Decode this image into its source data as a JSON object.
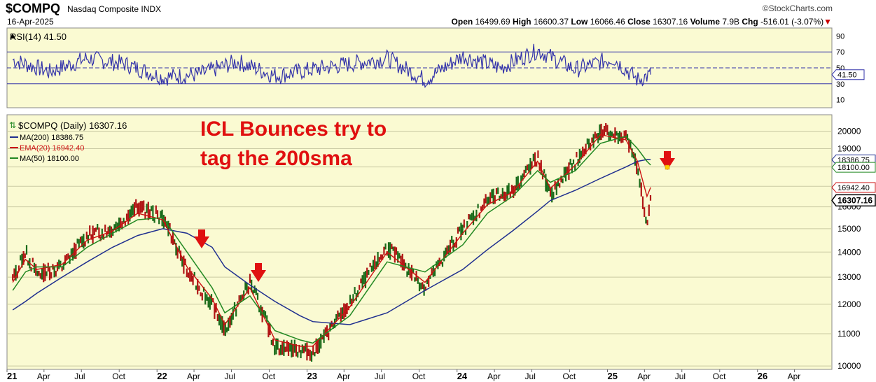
{
  "header": {
    "symbol": "$COMPQ",
    "name": "Nasdaq Composite INDX",
    "date": "16-Apr-2025",
    "credit": "©StockCharts.com",
    "open_label": "Open",
    "open": "16499.69",
    "high_label": "High",
    "high": "16600.37",
    "low_label": "Low",
    "low": "16066.46",
    "close_label": "Close",
    "close": "16307.16",
    "volume_label": "Volume",
    "volume": "7.9B",
    "chg_label": "Chg",
    "chg": "-516.01 (-3.07%)"
  },
  "colors": {
    "background": "#fafad2",
    "rsi": "#3333aa",
    "ma200": "#1f2f8f",
    "ema20": "#cc1111",
    "ma50": "#228822",
    "annotation": "#e01010"
  },
  "rsi_panel": {
    "label": "RSI(14) 41.50",
    "current_badge": "41.50",
    "ticks": [
      "90",
      "70",
      "50",
      "30",
      "10"
    ]
  },
  "price_panel": {
    "legend": {
      "main": "$COMPQ (Daily) 16307.16",
      "ma200": "MA(200) 18386.75",
      "ema20": "EMA(20) 16942.40",
      "ma50": "MA(50) 18100.00"
    },
    "annotation_line1": "ICL Bounces try to",
    "annotation_line2": "tag the 200sma",
    "price_ticks": [
      "20000",
      "19000",
      "18000",
      "17000",
      "16000",
      "15000",
      "14000",
      "13000",
      "12000",
      "11000",
      "10000"
    ],
    "badges": {
      "ma200": "18386.75",
      "ma50": "18100.00",
      "ema20": "16942.40",
      "close": "16307.16"
    }
  },
  "x_axis": {
    "labels": [
      "21",
      "Apr",
      "Jul",
      "Oct",
      "22",
      "Apr",
      "Jul",
      "Oct",
      "23",
      "Apr",
      "Jul",
      "Oct",
      "24",
      "Apr",
      "Jul",
      "Oct",
      "25",
      "Apr",
      "Jul",
      "Oct",
      "26",
      "Apr"
    ]
  },
  "chart_data": [
    {
      "type": "line",
      "title": "RSI(14) 41.50",
      "ylim": [
        0,
        100
      ],
      "reference_lines": [
        70,
        50,
        30
      ],
      "series": [
        {
          "name": "RSI(14)",
          "x": [
            "2021-01",
            "2021-04",
            "2021-07",
            "2021-10",
            "2022-01",
            "2022-04",
            "2022-07",
            "2022-10",
            "2023-01",
            "2023-04",
            "2023-07",
            "2023-10",
            "2024-01",
            "2024-04",
            "2024-07",
            "2024-10",
            "2025-01",
            "2025-03",
            "2025-04-16"
          ],
          "values": [
            60,
            45,
            62,
            55,
            38,
            42,
            58,
            40,
            48,
            55,
            62,
            35,
            65,
            50,
            72,
            48,
            62,
            35,
            41.5
          ]
        }
      ]
    },
    {
      "type": "line",
      "title": "$COMPQ (Daily) 16307.16",
      "scale": "log",
      "ylim": [
        9900,
        21000
      ],
      "x": [
        "2021-01",
        "2021-02",
        "2021-03",
        "2021-05",
        "2021-07",
        "2021-09",
        "2021-11",
        "2022-01",
        "2022-03",
        "2022-05",
        "2022-06",
        "2022-08",
        "2022-10",
        "2022-12",
        "2023-01",
        "2023-04",
        "2023-07",
        "2023-10",
        "2024-01",
        "2024-03",
        "2024-05",
        "2024-07",
        "2024-08",
        "2024-10",
        "2024-12",
        "2025-02",
        "2025-03",
        "2025-04-07",
        "2025-04-16"
      ],
      "series": [
        {
          "name": "$COMPQ (Daily)",
          "values": [
            12900,
            14000,
            13100,
            13400,
            14700,
            15000,
            16000,
            15500,
            13200,
            12000,
            11100,
            12800,
            10600,
            10500,
            10400,
            12000,
            14200,
            12600,
            15000,
            16300,
            16800,
            18500,
            16500,
            18300,
            20000,
            19600,
            18000,
            15000,
            16307
          ]
        },
        {
          "name": "MA(200)",
          "values": [
            11800,
            12100,
            12400,
            13000,
            13600,
            14200,
            14700,
            15000,
            14800,
            14200,
            13400,
            12700,
            12100,
            11600,
            11400,
            11300,
            11700,
            12500,
            13300,
            14100,
            14900,
            15800,
            16300,
            16800,
            17400,
            18000,
            18300,
            18400,
            18387
          ]
        },
        {
          "name": "EMA(20)",
          "values": [
            12800,
            13700,
            13300,
            13500,
            14500,
            14900,
            15700,
            15400,
            13400,
            12200,
            11300,
            12600,
            10800,
            10600,
            10600,
            11900,
            14000,
            12800,
            14800,
            16100,
            16700,
            18300,
            16900,
            18100,
            19800,
            19500,
            18300,
            16500,
            16942
          ]
        },
        {
          "name": "MA(50)",
          "values": [
            12500,
            13200,
            13400,
            13400,
            14200,
            14800,
            15400,
            15500,
            14000,
            12600,
            11700,
            12300,
            11100,
            10800,
            10700,
            11600,
            13600,
            13200,
            14300,
            15700,
            16500,
            17800,
            17200,
            17800,
            19300,
            19700,
            19000,
            18300,
            18100
          ]
        }
      ]
    }
  ]
}
